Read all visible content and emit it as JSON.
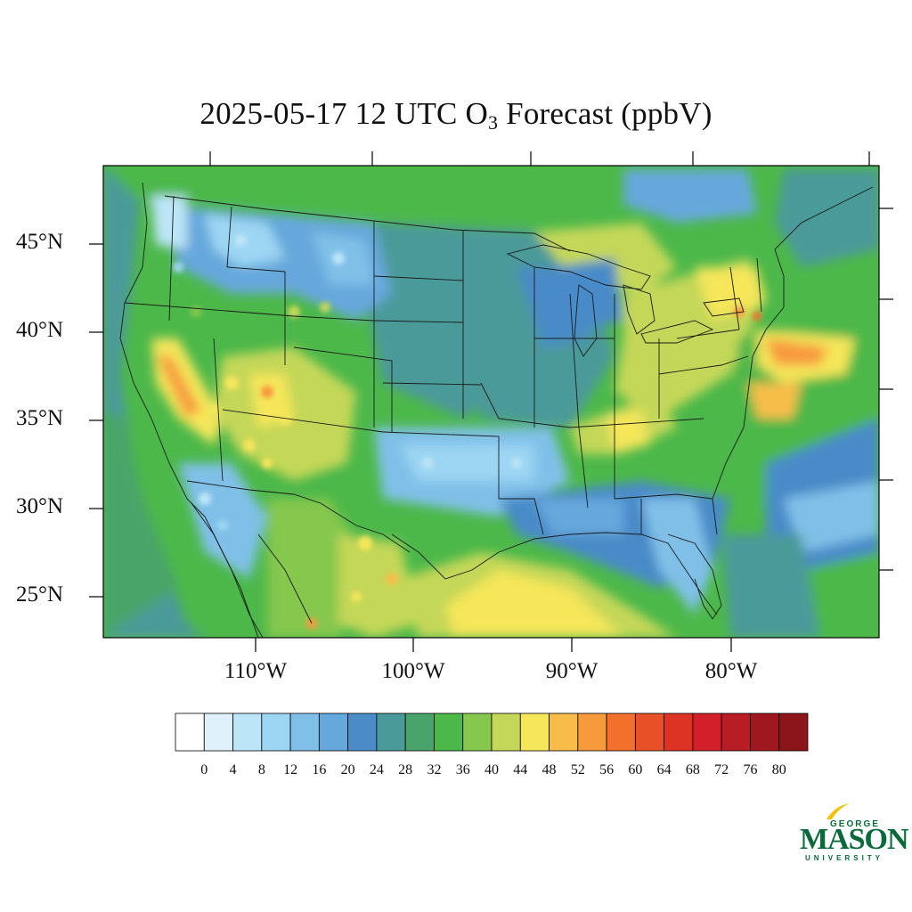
{
  "title": {
    "prefix": "2025-05-17 12 UTC O",
    "subscript": "3",
    "suffix": " Forecast (ppbV)"
  },
  "map": {
    "region": "Contiguous United States",
    "variable": "O3",
    "units": "ppbV",
    "lat_labels": [
      "45°N",
      "40°N",
      "35°N",
      "30°N",
      "25°N"
    ],
    "lon_labels": [
      "110°W",
      "100°W",
      "90°W",
      "80°W"
    ]
  },
  "colorbar": {
    "levels": [
      0,
      4,
      8,
      12,
      16,
      20,
      24,
      28,
      32,
      36,
      40,
      44,
      48,
      52,
      56,
      60,
      64,
      68,
      72,
      76,
      80
    ],
    "labels": [
      "0",
      "4",
      "8",
      "12",
      "16",
      "20",
      "24",
      "28",
      "32",
      "36",
      "40",
      "44",
      "48",
      "52",
      "56",
      "60",
      "64",
      "68",
      "72",
      "76",
      "80"
    ],
    "colors": [
      "#ffffff",
      "#dff1fb",
      "#bde5f8",
      "#9dd6f3",
      "#80c0e8",
      "#66a8dc",
      "#4a8bc8",
      "#4b9a9a",
      "#48a46a",
      "#4cb84a",
      "#86c74e",
      "#c4d758",
      "#f5e65a",
      "#f7bd48",
      "#f79a3c",
      "#f36f2c",
      "#e85028",
      "#dd3325",
      "#d21f2a",
      "#b81c24",
      "#a0181f",
      "#8c1519"
    ]
  },
  "logo": {
    "top": "GEORGE",
    "main": "MASON",
    "bottom": "UNIVERSITY",
    "color": "#0a6b3a",
    "accent": "#f2c200"
  }
}
